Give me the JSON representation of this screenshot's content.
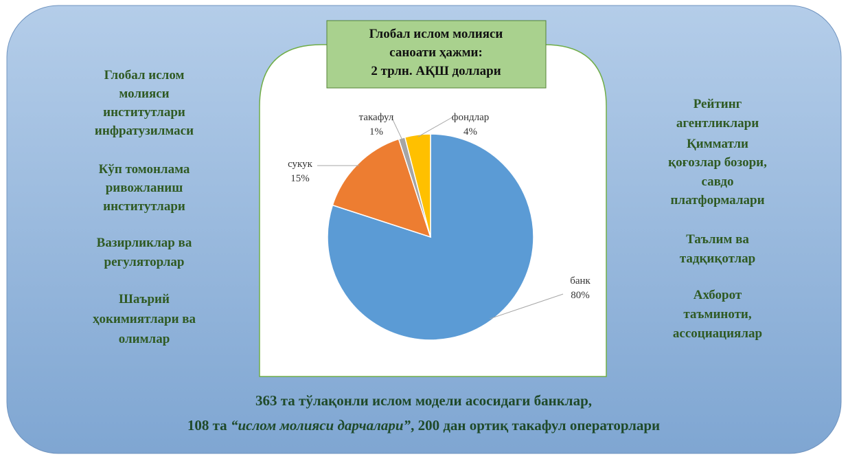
{
  "chart_data": {
    "type": "pie",
    "title": [
      "Глобал ислом молияси",
      "саноати ҳажми:",
      "2 трлн. АҚШ доллари"
    ],
    "categories": [
      "банк",
      "сукук",
      "такафул",
      "фондлар"
    ],
    "values": [
      80,
      15,
      1,
      4
    ],
    "value_labels": [
      "80%",
      "15%",
      "1%",
      "4%"
    ],
    "colors": [
      "#5b9bd5",
      "#ed7d31",
      "#a5a5a5",
      "#ffc000"
    ]
  },
  "left_items": [
    [
      "Глобал ислом",
      "молияси",
      "институтлари",
      "инфратузилмаси"
    ],
    [
      "Кўп томонлама",
      "ривожланиш",
      "институтлари"
    ],
    [
      "Вазирликлар ва",
      "регуляторлар"
    ],
    [
      "Шаърий",
      "ҳокимиятлари ва",
      "олимлар"
    ]
  ],
  "right_items": [
    [
      "Рейтинг",
      "агентликлари"
    ],
    [
      "Қимматли",
      "қоғозлар бозори,",
      "савдо",
      "платформалари"
    ],
    [
      "Таълим ва",
      "тадқиқотлар"
    ],
    [
      "Ахборот",
      "таъминоти,",
      "ассоциациялар"
    ]
  ],
  "footer": {
    "line1": "363 та тўлақонли ислом модели асосидаги банклар,",
    "line2": [
      "108 та ",
      "“ислом  молияси дарчалари”",
      ", 200 дан ортиқ такафул операторлари"
    ]
  }
}
